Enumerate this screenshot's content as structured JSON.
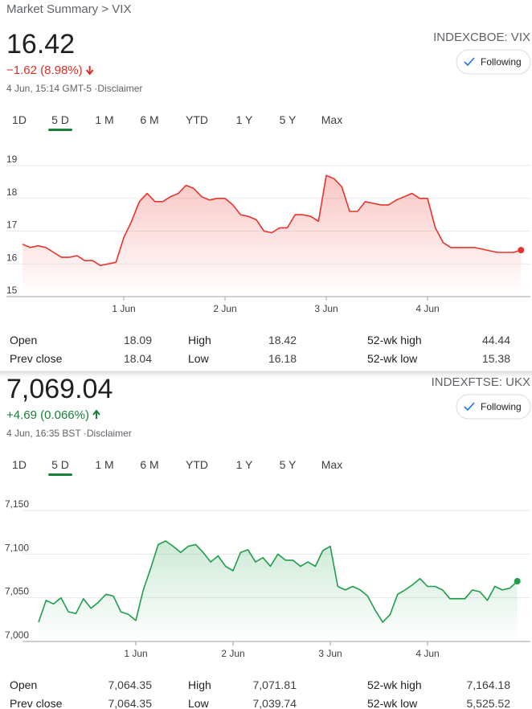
{
  "breadcrumb": "Market Summary > VIX",
  "panels": [
    {
      "price": "16.42",
      "change": "−1.62 (8.98%)",
      "direction": "down",
      "timestamp": "4 Jun, 15:14 GMT-5 ·Disclaimer",
      "ticker": "INDEXCBOE: VIX",
      "button": "Following",
      "tabs": [
        "1D",
        "5 D",
        "1 M",
        "6 M",
        "YTD",
        "1 Y",
        "5 Y",
        "Max"
      ],
      "active_tab": 1,
      "stats": [
        [
          "Open",
          "18.09",
          "High",
          "18.42",
          "52-wk high",
          "44.44"
        ],
        [
          "Prev close",
          "18.04",
          "Low",
          "16.18",
          "52-wk low",
          "15.38"
        ]
      ]
    },
    {
      "price": "7,069.04",
      "change": "+4.69 (0.066%)",
      "direction": "up",
      "timestamp": "4 Jun, 16:35 BST ·Disclaimer",
      "ticker": "INDEXFTSE: UKX",
      "button": "Following",
      "tabs": [
        "1D",
        "5 D",
        "1 M",
        "6 M",
        "YTD",
        "1 Y",
        "5 Y",
        "Max"
      ],
      "active_tab": 1,
      "stats": [
        [
          "Open",
          "7,064.35",
          "High",
          "7,071.81",
          "52-wk high",
          "7,164.18"
        ],
        [
          "Prev close",
          "7,064.35",
          "Low",
          "7,039.74",
          "52-wk low",
          "5,525.52"
        ]
      ]
    }
  ],
  "chart_data": [
    {
      "type": "line",
      "color": "#e8332a",
      "values": [
        16.6,
        16.5,
        16.55,
        16.5,
        16.35,
        16.2,
        16.2,
        16.25,
        16.1,
        16.1,
        15.95,
        16.0,
        16.05,
        16.8,
        17.3,
        17.9,
        18.15,
        17.9,
        17.9,
        18.05,
        18.15,
        18.4,
        18.3,
        18.05,
        17.95,
        18.0,
        18.0,
        17.8,
        17.5,
        17.45,
        17.35,
        17.0,
        16.95,
        17.1,
        17.1,
        17.5,
        17.5,
        17.45,
        17.3,
        18.7,
        18.6,
        18.35,
        17.6,
        17.6,
        17.9,
        17.85,
        17.8,
        17.8,
        17.95,
        18.05,
        18.15,
        18.0,
        18.0,
        17.1,
        16.65,
        16.5,
        16.5,
        16.5,
        16.5,
        16.45,
        16.4,
        16.35,
        16.35,
        16.35,
        16.42
      ],
      "xlim": [
        0,
        65
      ],
      "xticks": [
        {
          "value": 13,
          "label": "1 Jun"
        },
        {
          "value": 26,
          "label": "2 Jun"
        },
        {
          "value": 39,
          "label": "3 Jun"
        },
        {
          "value": 52,
          "label": "4 Jun"
        }
      ],
      "ylim": [
        15,
        19
      ],
      "yticks": [
        15,
        16,
        17,
        18,
        19
      ],
      "grid": true
    },
    {
      "type": "line",
      "color": "#1e9e4a",
      "values": [
        7022,
        7047,
        7043,
        7050,
        7034,
        7032,
        7049,
        7038,
        7045,
        7054,
        7052,
        7034,
        7031,
        7024,
        7059,
        7084,
        7111,
        7115,
        7109,
        7102,
        7109,
        7111,
        7102,
        7091,
        7098,
        7086,
        7081,
        7102,
        7105,
        7091,
        7096,
        7086,
        7100,
        7093,
        7093,
        7086,
        7091,
        7086,
        7104,
        7109,
        7063,
        7059,
        7063,
        7059,
        7052,
        7036,
        7022,
        7031,
        7054,
        7059,
        7065,
        7072,
        7063,
        7063,
        7059,
        7049,
        7049,
        7049,
        7059,
        7057,
        7047,
        7063,
        7059,
        7061,
        7069
      ],
      "xlim": [
        0,
        65
      ],
      "xticks": [
        {
          "value": 13,
          "label": "1 Jun"
        },
        {
          "value": 26,
          "label": "2 Jun"
        },
        {
          "value": 39,
          "label": "3 Jun"
        },
        {
          "value": 52,
          "label": "4 Jun"
        }
      ],
      "ylim": [
        7000,
        7150
      ],
      "yticks": [
        {
          "value": 7000,
          "label": "7,000"
        },
        {
          "value": 7050,
          "label": "7,050"
        },
        {
          "value": 7100,
          "label": "7,100"
        },
        {
          "value": 7150,
          "label": "7,150"
        }
      ],
      "grid": true
    }
  ]
}
